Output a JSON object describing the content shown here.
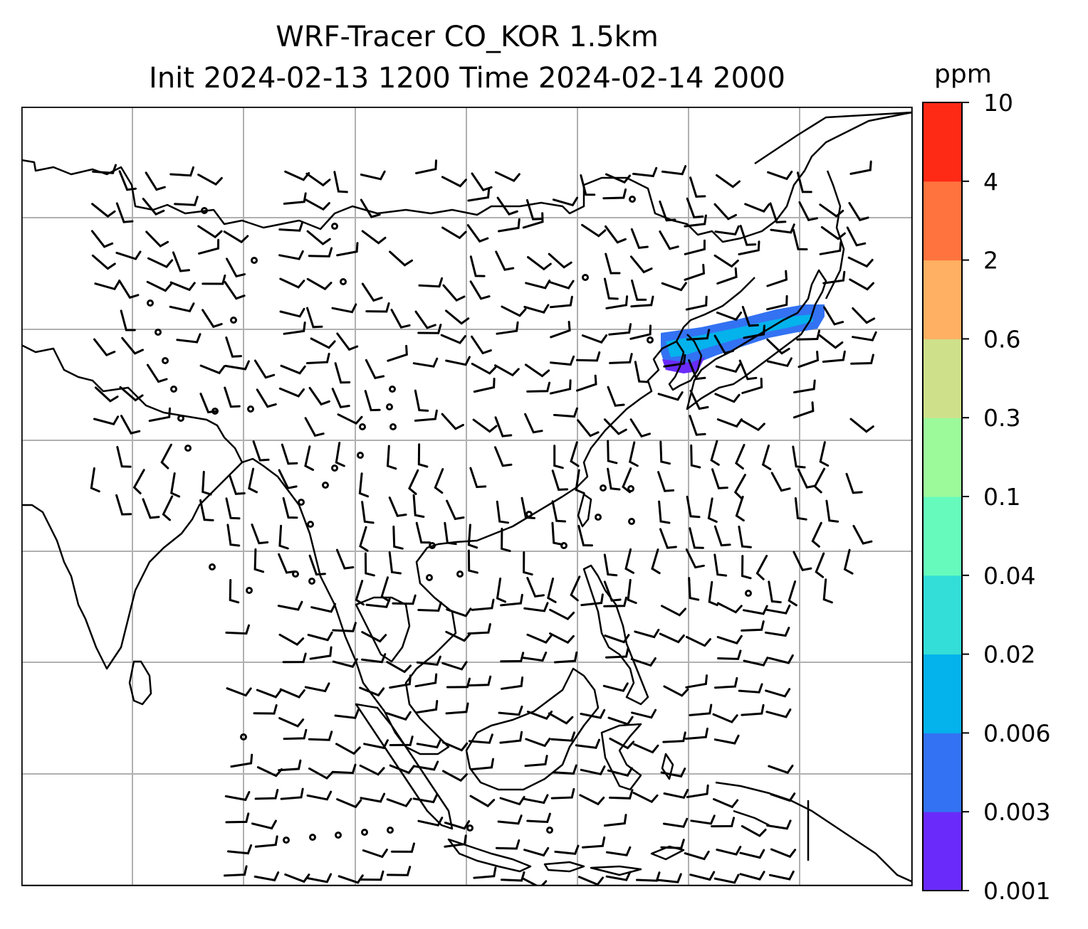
{
  "title": {
    "line1": "WRF-Tracer CO_KOR 1.5km",
    "line2": "Init 2024-02-13 1200 Time 2024-02-14 2000"
  },
  "colorbar": {
    "unit": "ppm",
    "levels": [
      "0.001",
      "0.003",
      "0.006",
      "0.02",
      "0.04",
      "0.1",
      "0.3",
      "0.6",
      "2",
      "4",
      "10"
    ],
    "colors": [
      "#6a2bfa",
      "#3372f2",
      "#04b2ec",
      "#33ddd8",
      "#66fbbc",
      "#9dfa9b",
      "#cfe08a",
      "#ffb062",
      "#ff733e",
      "#ff2a16"
    ]
  },
  "map": {
    "gridlines": true,
    "wind_barbs": true,
    "coastline_color": "#000000",
    "grid_color": "#b0b0b0",
    "plume": {
      "description_color_low": "#3372f2",
      "color_mid": "#04b2ec",
      "color_edge": "#6a2bfa"
    }
  }
}
